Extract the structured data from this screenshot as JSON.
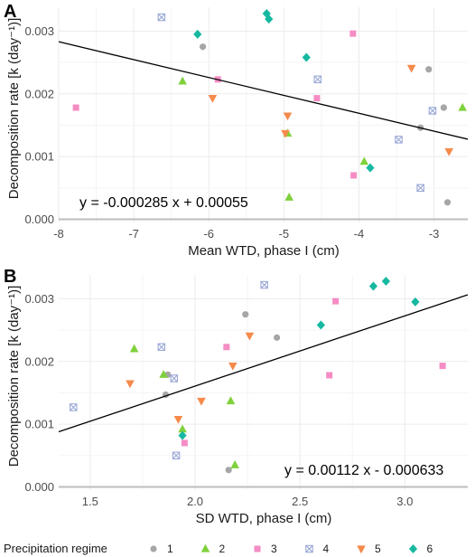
{
  "legend": {
    "title": "Precipitation regime",
    "entries": [
      {
        "label": "1",
        "color": "#a6a6a6",
        "shape": "circle"
      },
      {
        "label": "2",
        "color": "#7fd13b",
        "shape": "triangle-up"
      },
      {
        "label": "3",
        "color": "#f58cc4",
        "shape": "square"
      },
      {
        "label": "4",
        "color": "#9aa8d6",
        "shape": "square-cross"
      },
      {
        "label": "5",
        "color": "#f58a4b",
        "shape": "triangle-down"
      },
      {
        "label": "6",
        "color": "#16b8a0",
        "shape": "diamond"
      }
    ]
  },
  "chart_data": [
    {
      "type": "scatter",
      "panel": "A",
      "xlabel": "Mean WTD, phase I (cm)",
      "ylabel": "Decomposition rate [k (day⁻¹)]",
      "xlim": [
        -8,
        -2.55
      ],
      "ylim": [
        -5e-05,
        0.00338
      ],
      "xticks": [
        -8,
        -7,
        -6,
        -5,
        -4,
        -3
      ],
      "yticks": [
        0.0,
        0.001,
        0.002,
        0.003
      ],
      "xticklabels": [
        "-8",
        "-7",
        "-6",
        "-5",
        "-4",
        "-3"
      ],
      "yticklabels": [
        "0.000",
        "0.001",
        "0.002",
        "0.003"
      ],
      "grid": true,
      "equation": "y = -0.000285 x + 0.00055",
      "fit": {
        "slope": -0.000285,
        "intercept": 0.00055
      },
      "series": [
        {
          "name": "1",
          "points": [
            [
              -6.08,
              0.00275
            ],
            [
              -3.07,
              0.00239
            ],
            [
              -2.87,
              0.00178
            ],
            [
              -3.18,
              0.00146
            ],
            [
              -2.82,
              0.00027
            ]
          ]
        },
        {
          "name": "2",
          "points": [
            [
              -6.35,
              0.0022
            ],
            [
              -4.95,
              0.00137
            ],
            [
              -4.93,
              0.00035
            ],
            [
              -3.93,
              0.00092
            ],
            [
              -2.62,
              0.00178
            ]
          ]
        },
        {
          "name": "3",
          "points": [
            [
              -7.77,
              0.00178
            ],
            [
              -5.88,
              0.00223
            ],
            [
              -4.08,
              0.00296
            ],
            [
              -4.56,
              0.00193
            ],
            [
              -4.07,
              0.0007
            ]
          ]
        },
        {
          "name": "4",
          "points": [
            [
              -6.63,
              0.00322
            ],
            [
              -4.55,
              0.00223
            ],
            [
              -3.02,
              0.00173
            ],
            [
              -3.47,
              0.00127
            ],
            [
              -3.18,
              0.0005
            ]
          ]
        },
        {
          "name": "5",
          "points": [
            [
              -5.95,
              0.00193
            ],
            [
              -4.95,
              0.00165
            ],
            [
              -4.98,
              0.00137
            ],
            [
              -3.3,
              0.00241
            ],
            [
              -2.8,
              0.00108
            ]
          ]
        },
        {
          "name": "6",
          "points": [
            [
              -6.15,
              0.00295
            ],
            [
              -5.23,
              0.00328
            ],
            [
              -5.2,
              0.00319
            ],
            [
              -4.7,
              0.00258
            ],
            [
              -3.85,
              0.00082
            ]
          ]
        }
      ]
    },
    {
      "type": "scatter",
      "panel": "B",
      "xlabel": "SD WTD, phase I (cm)",
      "ylabel": "Decomposition rate [k (day⁻¹)]",
      "xlim": [
        1.35,
        3.3
      ],
      "ylim": [
        -5e-05,
        0.00338
      ],
      "xticks": [
        1.5,
        2.0,
        2.5,
        3.0
      ],
      "yticks": [
        0.0,
        0.001,
        0.002,
        0.003
      ],
      "xticklabels": [
        "1.5",
        "2.0",
        "2.5",
        "3.0"
      ],
      "yticklabels": [
        "0.000",
        "0.001",
        "0.002",
        "0.003"
      ],
      "grid": true,
      "equation": "y = 0.00112 x - 0.000633",
      "fit": {
        "slope": 0.00112,
        "intercept": -0.000633
      },
      "series": [
        {
          "name": "1",
          "points": [
            [
              1.87,
              0.00179
            ],
            [
              1.86,
              0.00147
            ],
            [
              2.24,
              0.00275
            ],
            [
              2.39,
              0.00238
            ],
            [
              2.16,
              0.00027
            ]
          ]
        },
        {
          "name": "2",
          "points": [
            [
              1.71,
              0.0022
            ],
            [
              1.85,
              0.00179
            ],
            [
              2.17,
              0.00137
            ],
            [
              1.94,
              0.00092
            ],
            [
              2.19,
              0.00035
            ]
          ]
        },
        {
          "name": "3",
          "points": [
            [
              2.67,
              0.00296
            ],
            [
              2.15,
              0.00223
            ],
            [
              2.64,
              0.00178
            ],
            [
              3.18,
              0.00193
            ],
            [
              1.95,
              0.0007
            ]
          ]
        },
        {
          "name": "4",
          "points": [
            [
              2.33,
              0.00322
            ],
            [
              1.84,
              0.00223
            ],
            [
              1.9,
              0.00173
            ],
            [
              1.42,
              0.00127
            ],
            [
              1.91,
              0.0005
            ]
          ]
        },
        {
          "name": "5",
          "points": [
            [
              1.69,
              0.00165
            ],
            [
              2.18,
              0.00193
            ],
            [
              2.26,
              0.00241
            ],
            [
              2.03,
              0.00137
            ],
            [
              1.92,
              0.00108
            ]
          ]
        },
        {
          "name": "6",
          "points": [
            [
              2.85,
              0.0032
            ],
            [
              2.91,
              0.00328
            ],
            [
              3.05,
              0.00295
            ],
            [
              2.6,
              0.00258
            ],
            [
              1.94,
              0.00082
            ]
          ]
        }
      ]
    }
  ]
}
